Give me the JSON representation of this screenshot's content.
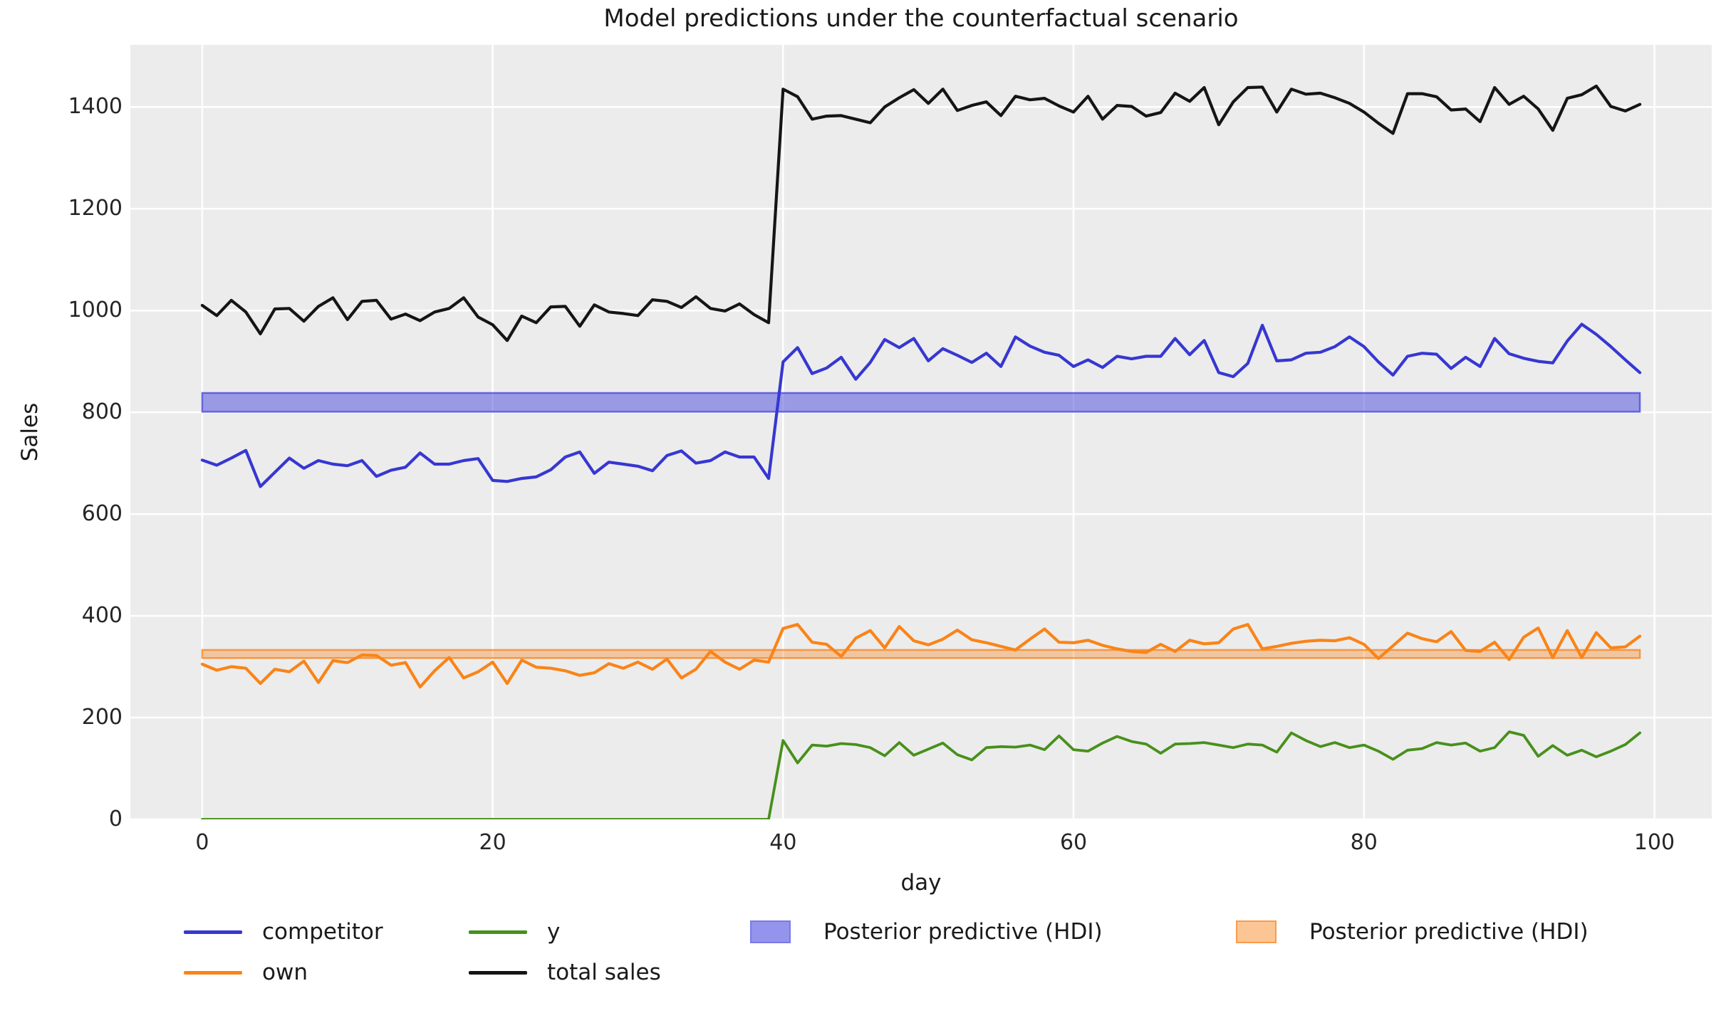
{
  "figure": {
    "title": "Model predictions under the counterfactual scenario",
    "xlabel": "day",
    "ylabel": "Sales"
  },
  "legend": {
    "entries": [
      {
        "label": "competitor",
        "type": "line",
        "color": "#3737d2"
      },
      {
        "label": "own",
        "type": "line",
        "color": "#fa8418"
      },
      {
        "label": "y",
        "type": "line",
        "color": "#48901c"
      },
      {
        "label": "total sales",
        "type": "line",
        "color": "#151515"
      },
      {
        "label": "Posterior predictive (HDI)",
        "type": "patch",
        "fill": "#9494ec",
        "edge": "#7a7ae8"
      },
      {
        "label": "Posterior predictive (HDI)",
        "type": "patch",
        "fill": "#fbc694",
        "edge": "#fa9b4b"
      }
    ]
  },
  "chart_data": {
    "type": "line",
    "title": "Model predictions under the counterfactual scenario",
    "xlabel": "day",
    "ylabel": "Sales",
    "xlim": [
      -4.95,
      103.95
    ],
    "ylim": [
      0,
      1522
    ],
    "xticks": [
      0,
      20,
      40,
      60,
      80,
      100
    ],
    "yticks": [
      0,
      200,
      400,
      600,
      800,
      1000,
      1200,
      1400
    ],
    "grid": true,
    "grid_color": "#ffffff",
    "background": "#ececec",
    "legend_position": "below plot, two rows",
    "intervention_note": "all series show a step change at day 40",
    "x": [
      0,
      1,
      2,
      3,
      4,
      5,
      6,
      7,
      8,
      9,
      10,
      11,
      12,
      13,
      14,
      15,
      16,
      17,
      18,
      19,
      20,
      21,
      22,
      23,
      24,
      25,
      26,
      27,
      28,
      29,
      30,
      31,
      32,
      33,
      34,
      35,
      36,
      37,
      38,
      39,
      40,
      41,
      42,
      43,
      44,
      45,
      46,
      47,
      48,
      49,
      50,
      51,
      52,
      53,
      54,
      55,
      56,
      57,
      58,
      59,
      60,
      61,
      62,
      63,
      64,
      65,
      66,
      67,
      68,
      69,
      70,
      71,
      72,
      73,
      74,
      75,
      76,
      77,
      78,
      79,
      80,
      81,
      82,
      83,
      84,
      85,
      86,
      87,
      88,
      89,
      90,
      91,
      92,
      93,
      94,
      95,
      96,
      97,
      98,
      99
    ],
    "series": [
      {
        "name": "competitor",
        "color": "#3737d2",
        "width": 4.2,
        "values": [
          706,
          696,
          710,
          725,
          654,
          682,
          710,
          690,
          705,
          698,
          695,
          705,
          674,
          686,
          692,
          720,
          698,
          698,
          705,
          709,
          666,
          664,
          670,
          673,
          687,
          712,
          722,
          680,
          702,
          698,
          694,
          685,
          715,
          724,
          700,
          705,
          722,
          712,
          712,
          670,
          899,
          927,
          876,
          887,
          908,
          865,
          898,
          943,
          927,
          945,
          901,
          925,
          912,
          898,
          916,
          890,
          948,
          930,
          918,
          912,
          890,
          903,
          888,
          910,
          905,
          910,
          910,
          945,
          913,
          941,
          878,
          870,
          896,
          971,
          901,
          903,
          916,
          918,
          929,
          948,
          929,
          899,
          873,
          910,
          916,
          914,
          886,
          908,
          890,
          945,
          915,
          906,
          900,
          897,
          940,
          973,
          953,
          929,
          903,
          878
        ]
      },
      {
        "name": "own",
        "color": "#fa8418",
        "width": 4.2,
        "values": [
          305,
          293,
          300,
          297,
          267,
          295,
          290,
          311,
          269,
          312,
          308,
          323,
          322,
          303,
          308,
          260,
          292,
          318,
          278,
          290,
          309,
          267,
          313,
          299,
          297,
          292,
          283,
          288,
          306,
          297,
          309,
          295,
          315,
          278,
          295,
          330,
          309,
          295,
          313,
          309,
          375,
          383,
          348,
          344,
          320,
          356,
          371,
          337,
          379,
          351,
          343,
          354,
          372,
          353,
          347,
          340,
          333,
          354,
          374,
          348,
          347,
          352,
          342,
          335,
          330,
          328,
          344,
          330,
          352,
          345,
          347,
          374,
          383,
          335,
          340,
          346,
          350,
          352,
          351,
          357,
          344,
          316,
          341,
          366,
          355,
          349,
          369,
          332,
          330,
          348,
          314,
          358,
          376,
          318,
          371,
          318,
          367,
          337,
          339,
          360
        ]
      },
      {
        "name": "y",
        "color": "#48901c",
        "width": 3.8,
        "values": [
          0,
          0,
          0,
          0,
          0,
          0,
          0,
          0,
          0,
          0,
          0,
          0,
          0,
          0,
          0,
          0,
          0,
          0,
          0,
          0,
          0,
          0,
          0,
          0,
          0,
          0,
          0,
          0,
          0,
          0,
          0,
          0,
          0,
          0,
          0,
          0,
          0,
          0,
          0,
          0,
          155,
          111,
          146,
          144,
          149,
          147,
          141,
          125,
          151,
          126,
          138,
          150,
          127,
          117,
          141,
          143,
          142,
          146,
          137,
          164,
          137,
          134,
          150,
          163,
          153,
          148,
          130,
          148,
          149,
          151,
          146,
          141,
          148,
          146,
          132,
          170,
          155,
          143,
          151,
          141,
          146,
          134,
          118,
          136,
          139,
          151,
          146,
          150,
          134,
          141,
          172,
          165,
          124,
          145,
          126,
          136,
          123,
          134,
          147,
          170
        ]
      },
      {
        "name": "total sales",
        "color": "#151515",
        "width": 4.2,
        "values": [
          1010,
          990,
          1020,
          997,
          954,
          1003,
          1004,
          979,
          1008,
          1025,
          982,
          1018,
          1020,
          983,
          993,
          980,
          997,
          1004,
          1025,
          987,
          972,
          941,
          989,
          976,
          1007,
          1008,
          969,
          1011,
          997,
          994,
          990,
          1021,
          1018,
          1006,
          1027,
          1004,
          999,
          1013,
          992,
          976,
          1435,
          1420,
          1376,
          1382,
          1383,
          1376,
          1369,
          1400,
          1418,
          1434,
          1407,
          1435,
          1393,
          1403,
          1410,
          1383,
          1421,
          1414,
          1417,
          1402,
          1390,
          1421,
          1376,
          1403,
          1401,
          1382,
          1389,
          1427,
          1411,
          1438,
          1365,
          1410,
          1438,
          1439,
          1390,
          1435,
          1425,
          1427,
          1418,
          1407,
          1390,
          1368,
          1348,
          1426,
          1426,
          1420,
          1394,
          1396,
          1371,
          1438,
          1405,
          1421,
          1396,
          1354,
          1417,
          1424,
          1441,
          1401,
          1392,
          1405
        ]
      }
    ],
    "bands": [
      {
        "name": "Posterior predictive (HDI) - competitor",
        "x": [
          0,
          99
        ],
        "lo": 801,
        "hi": 838,
        "fill": "rgba(70,70,220,0.50)",
        "edge": "rgba(70,70,220,0.75)"
      },
      {
        "name": "Posterior predictive (HDI) - own",
        "x": [
          0,
          99
        ],
        "lo": 317,
        "hi": 333,
        "fill": "rgba(250,130,25,0.35)",
        "edge": "rgba(250,130,25,0.75)"
      }
    ]
  }
}
